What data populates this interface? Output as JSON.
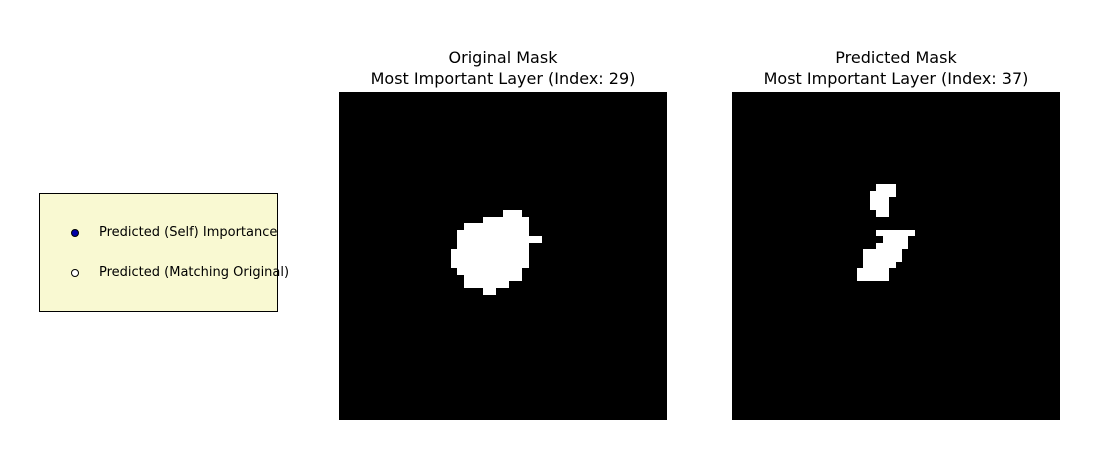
{
  "colors": {
    "background": "#ffffff",
    "legend_background": "#f9f9d2",
    "mask_background": "#000000",
    "mask_foreground": "#ffffff",
    "self_importance_marker": "#0000a8",
    "matching_original_marker": "#ffffff"
  },
  "legend": {
    "items": [
      {
        "label": "Predicted (Self) Importance",
        "marker_icon": "filled-circle-icon"
      },
      {
        "label": "Predicted (Matching Original)",
        "marker_icon": "hollow-circle-icon"
      }
    ]
  },
  "panels": {
    "original": {
      "title_line1": "Original Mask",
      "title_line2": "Most Important Layer (Index: 29)"
    },
    "predicted": {
      "title_line1": "Predicted Mask",
      "title_line2": "Most Important Layer (Index: 37)"
    }
  }
}
